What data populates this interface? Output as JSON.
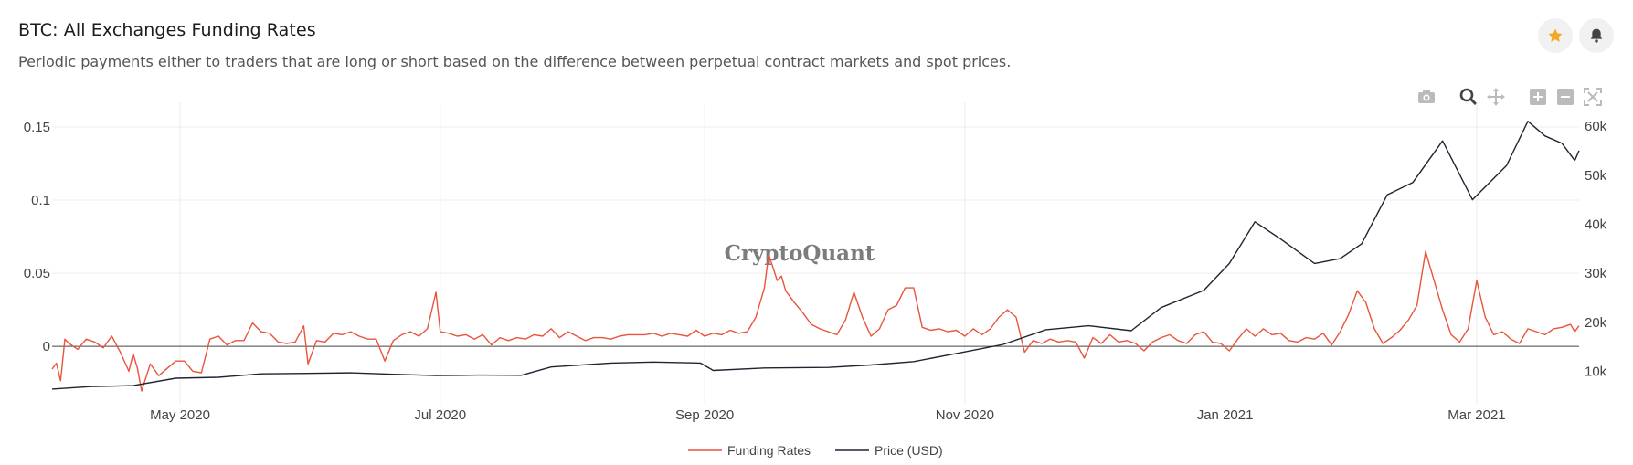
{
  "header": {
    "title": "BTC: All Exchanges Funding Rates",
    "subtitle": "Periodic payments either to traders that are long or short based on the difference between perpetual contract markets and spot prices."
  },
  "buttons": {
    "favorite_icon": "star-icon",
    "notify_icon": "bell-icon"
  },
  "modebar": [
    "camera-icon",
    "zoom-icon",
    "pan-icon",
    "zoom-in-icon",
    "zoom-out-icon",
    "autoscale-icon"
  ],
  "colors": {
    "funding": "#e8543c",
    "price": "#1d2531",
    "star": "#f5a623",
    "grid": "#ececec"
  },
  "watermark": "CryptoQuant",
  "chart_data": {
    "type": "line",
    "x_ticks": [
      "May 2020",
      "Jul 2020",
      "Sep 2020",
      "Nov 2020",
      "Jan 2021",
      "Mar 2021"
    ],
    "y_left_ticks": [
      "0.15",
      "0.1",
      "0.05",
      "0"
    ],
    "y_right_ticks": [
      "60k",
      "50k",
      "40k",
      "30k",
      "20k",
      "10k"
    ],
    "ylim_left": [
      -0.0305,
      0.1606
    ],
    "ylim_right": [
      6000,
      63000
    ],
    "xlim": [
      "2020-04-01",
      "2021-03-25"
    ],
    "legend_position": "bottom-center",
    "series": [
      {
        "name": "Funding Rates",
        "axis": "left",
        "points": [
          [
            "2020-04-01",
            -0.0155
          ],
          [
            "2020-04-02",
            -0.0115
          ],
          [
            "2020-04-03",
            -0.0235
          ],
          [
            "2020-04-04",
            0.005
          ],
          [
            "2020-04-05",
            0.002
          ],
          [
            "2020-04-07",
            -0.002
          ],
          [
            "2020-04-09",
            0.005
          ],
          [
            "2020-04-11",
            0.003
          ],
          [
            "2020-04-13",
            -0.001
          ],
          [
            "2020-04-15",
            0.007
          ],
          [
            "2020-04-17",
            -0.004
          ],
          [
            "2020-04-19",
            -0.017
          ],
          [
            "2020-04-20",
            -0.005
          ],
          [
            "2020-04-21",
            -0.015
          ],
          [
            "2020-04-22",
            -0.0305
          ],
          [
            "2020-04-24",
            -0.012
          ],
          [
            "2020-04-26",
            -0.02
          ],
          [
            "2020-04-28",
            -0.015
          ],
          [
            "2020-04-30",
            -0.01
          ],
          [
            "2020-05-02",
            -0.01
          ],
          [
            "2020-05-04",
            -0.017
          ],
          [
            "2020-05-06",
            -0.018
          ],
          [
            "2020-05-08",
            0.005
          ],
          [
            "2020-05-10",
            0.007
          ],
          [
            "2020-05-12",
            0.001
          ],
          [
            "2020-05-14",
            0.004
          ],
          [
            "2020-05-16",
            0.004
          ],
          [
            "2020-05-18",
            0.016
          ],
          [
            "2020-05-20",
            0.01
          ],
          [
            "2020-05-22",
            0.009
          ],
          [
            "2020-05-24",
            0.003
          ],
          [
            "2020-05-26",
            0.002
          ],
          [
            "2020-05-28",
            0.003
          ],
          [
            "2020-05-30",
            0.014
          ],
          [
            "2020-05-31",
            -0.012
          ],
          [
            "2020-06-02",
            0.004
          ],
          [
            "2020-06-04",
            0.003
          ],
          [
            "2020-06-06",
            0.009
          ],
          [
            "2020-06-08",
            0.008
          ],
          [
            "2020-06-10",
            0.01
          ],
          [
            "2020-06-12",
            0.007
          ],
          [
            "2020-06-14",
            0.005
          ],
          [
            "2020-06-16",
            0.005
          ],
          [
            "2020-06-18",
            -0.01
          ],
          [
            "2020-06-20",
            0.004
          ],
          [
            "2020-06-22",
            0.008
          ],
          [
            "2020-06-24",
            0.01
          ],
          [
            "2020-06-26",
            0.007
          ],
          [
            "2020-06-28",
            0.012
          ],
          [
            "2020-06-30",
            0.037
          ],
          [
            "2020-07-01",
            0.01
          ],
          [
            "2020-07-03",
            0.009
          ],
          [
            "2020-07-05",
            0.007
          ],
          [
            "2020-07-07",
            0.008
          ],
          [
            "2020-07-09",
            0.005
          ],
          [
            "2020-07-11",
            0.008
          ],
          [
            "2020-07-13",
            0.001
          ],
          [
            "2020-07-15",
            0.006
          ],
          [
            "2020-07-17",
            0.004
          ],
          [
            "2020-07-19",
            0.006
          ],
          [
            "2020-07-21",
            0.005
          ],
          [
            "2020-07-23",
            0.008
          ],
          [
            "2020-07-25",
            0.007
          ],
          [
            "2020-07-27",
            0.012
          ],
          [
            "2020-07-29",
            0.006
          ],
          [
            "2020-07-31",
            0.01
          ],
          [
            "2020-08-02",
            0.007
          ],
          [
            "2020-08-04",
            0.004
          ],
          [
            "2020-08-06",
            0.006
          ],
          [
            "2020-08-08",
            0.006
          ],
          [
            "2020-08-10",
            0.005
          ],
          [
            "2020-08-12",
            0.007
          ],
          [
            "2020-08-14",
            0.008
          ],
          [
            "2020-08-16",
            0.008
          ],
          [
            "2020-08-18",
            0.008
          ],
          [
            "2020-08-20",
            0.009
          ],
          [
            "2020-08-22",
            0.007
          ],
          [
            "2020-08-24",
            0.009
          ],
          [
            "2020-08-26",
            0.008
          ],
          [
            "2020-08-28",
            0.007
          ],
          [
            "2020-08-30",
            0.011
          ],
          [
            "2020-09-01",
            0.007
          ],
          [
            "2020-09-03",
            0.009
          ],
          [
            "2020-09-05",
            0.008
          ],
          [
            "2020-09-07",
            0.011
          ],
          [
            "2020-09-09",
            0.009
          ],
          [
            "2020-09-11",
            0.01
          ],
          [
            "2020-09-13",
            0.02
          ],
          [
            "2020-09-15",
            0.04
          ],
          [
            "2020-09-16",
            0.063
          ],
          [
            "2020-09-18",
            0.045
          ],
          [
            "2020-09-19",
            0.048
          ],
          [
            "2020-09-20",
            0.038
          ],
          [
            "2020-09-22",
            0.03
          ],
          [
            "2020-09-24",
            0.023
          ],
          [
            "2020-09-26",
            0.015
          ],
          [
            "2020-09-28",
            0.012
          ],
          [
            "2020-09-30",
            0.01
          ],
          [
            "2020-10-02",
            0.008
          ],
          [
            "2020-10-04",
            0.018
          ],
          [
            "2020-10-06",
            0.037
          ],
          [
            "2020-10-08",
            0.02
          ],
          [
            "2020-10-10",
            0.007
          ],
          [
            "2020-10-12",
            0.012
          ],
          [
            "2020-10-14",
            0.025
          ],
          [
            "2020-10-16",
            0.028
          ],
          [
            "2020-10-18",
            0.04
          ],
          [
            "2020-10-20",
            0.04
          ],
          [
            "2020-10-22",
            0.013
          ],
          [
            "2020-10-24",
            0.011
          ],
          [
            "2020-10-26",
            0.012
          ],
          [
            "2020-10-28",
            0.01
          ],
          [
            "2020-10-30",
            0.011
          ],
          [
            "2020-11-01",
            0.007
          ],
          [
            "2020-11-03",
            0.012
          ],
          [
            "2020-11-05",
            0.008
          ],
          [
            "2020-11-07",
            0.012
          ],
          [
            "2020-11-09",
            0.02
          ],
          [
            "2020-11-11",
            0.025
          ],
          [
            "2020-11-13",
            0.02
          ],
          [
            "2020-11-15",
            -0.004
          ],
          [
            "2020-11-17",
            0.004
          ],
          [
            "2020-11-19",
            0.002
          ],
          [
            "2020-11-21",
            0.005
          ],
          [
            "2020-11-23",
            0.003
          ],
          [
            "2020-11-25",
            0.004
          ],
          [
            "2020-11-27",
            0.003
          ],
          [
            "2020-11-29",
            -0.008
          ],
          [
            "2020-12-01",
            0.006
          ],
          [
            "2020-12-03",
            0.002
          ],
          [
            "2020-12-05",
            0.008
          ],
          [
            "2020-12-07",
            0.003
          ],
          [
            "2020-12-09",
            0.004
          ],
          [
            "2020-12-11",
            0.002
          ],
          [
            "2020-12-13",
            -0.003
          ],
          [
            "2020-12-15",
            0.003
          ],
          [
            "2020-12-17",
            0.006
          ],
          [
            "2020-12-19",
            0.008
          ],
          [
            "2020-12-21",
            0.004
          ],
          [
            "2020-12-23",
            0.002
          ],
          [
            "2020-12-25",
            0.008
          ],
          [
            "2020-12-27",
            0.01
          ],
          [
            "2020-12-29",
            0.003
          ],
          [
            "2020-12-31",
            0.002
          ],
          [
            "2021-01-02",
            -0.003
          ],
          [
            "2021-01-04",
            0.005
          ],
          [
            "2021-01-06",
            0.012
          ],
          [
            "2021-01-08",
            0.007
          ],
          [
            "2021-01-10",
            0.012
          ],
          [
            "2021-01-12",
            0.008
          ],
          [
            "2021-01-14",
            0.009
          ],
          [
            "2021-01-16",
            0.004
          ],
          [
            "2021-01-18",
            0.003
          ],
          [
            "2021-01-20",
            0.006
          ],
          [
            "2021-01-22",
            0.005
          ],
          [
            "2021-01-24",
            0.009
          ],
          [
            "2021-01-26",
            0.001
          ],
          [
            "2021-01-28",
            0.01
          ],
          [
            "2021-01-30",
            0.022
          ],
          [
            "2021-02-01",
            0.038
          ],
          [
            "2021-02-03",
            0.03
          ],
          [
            "2021-02-05",
            0.012
          ],
          [
            "2021-02-07",
            0.002
          ],
          [
            "2021-02-09",
            0.006
          ],
          [
            "2021-02-11",
            0.011
          ],
          [
            "2021-02-13",
            0.018
          ],
          [
            "2021-02-15",
            0.028
          ],
          [
            "2021-02-17",
            0.065
          ],
          [
            "2021-02-19",
            0.045
          ],
          [
            "2021-02-21",
            0.025
          ],
          [
            "2021-02-23",
            0.008
          ],
          [
            "2021-02-25",
            0.003
          ],
          [
            "2021-02-27",
            0.012
          ],
          [
            "2021-03-01",
            0.045
          ],
          [
            "2021-03-03",
            0.02
          ],
          [
            "2021-03-05",
            0.008
          ],
          [
            "2021-03-07",
            0.01
          ],
          [
            "2021-03-09",
            0.005
          ],
          [
            "2021-03-11",
            0.002
          ],
          [
            "2021-03-13",
            0.012
          ],
          [
            "2021-03-15",
            0.01
          ],
          [
            "2021-03-17",
            0.008
          ],
          [
            "2021-03-19",
            0.012
          ],
          [
            "2021-03-21",
            0.013
          ],
          [
            "2021-03-23",
            0.015
          ],
          [
            "2021-03-24",
            0.01
          ],
          [
            "2021-03-25",
            0.014
          ]
        ]
      },
      {
        "name": "Price (USD)",
        "axis": "right",
        "points": [
          [
            "2020-04-01",
            6400
          ],
          [
            "2020-04-10",
            6900
          ],
          [
            "2020-04-20",
            7100
          ],
          [
            "2020-04-30",
            8600
          ],
          [
            "2020-05-10",
            8800
          ],
          [
            "2020-05-20",
            9500
          ],
          [
            "2020-05-31",
            9600
          ],
          [
            "2020-06-10",
            9700
          ],
          [
            "2020-06-20",
            9400
          ],
          [
            "2020-06-30",
            9150
          ],
          [
            "2020-07-10",
            9250
          ],
          [
            "2020-07-20",
            9200
          ],
          [
            "2020-07-27",
            10900
          ],
          [
            "2020-08-10",
            11700
          ],
          [
            "2020-08-20",
            11900
          ],
          [
            "2020-08-31",
            11700
          ],
          [
            "2020-09-03",
            10200
          ],
          [
            "2020-09-15",
            10700
          ],
          [
            "2020-09-30",
            10800
          ],
          [
            "2020-10-10",
            11300
          ],
          [
            "2020-10-20",
            12000
          ],
          [
            "2020-10-31",
            13800
          ],
          [
            "2020-11-10",
            15500
          ],
          [
            "2020-11-20",
            18500
          ],
          [
            "2020-11-30",
            19300
          ],
          [
            "2020-12-10",
            18300
          ],
          [
            "2020-12-17",
            23000
          ],
          [
            "2020-12-27",
            26500
          ],
          [
            "2021-01-02",
            32000
          ],
          [
            "2021-01-08",
            40500
          ],
          [
            "2021-01-14",
            37000
          ],
          [
            "2021-01-22",
            32000
          ],
          [
            "2021-01-28",
            33000
          ],
          [
            "2021-02-02",
            36000
          ],
          [
            "2021-02-08",
            46000
          ],
          [
            "2021-02-14",
            48500
          ],
          [
            "2021-02-21",
            57000
          ],
          [
            "2021-02-28",
            45000
          ],
          [
            "2021-03-08",
            52000
          ],
          [
            "2021-03-13",
            61000
          ],
          [
            "2021-03-17",
            58000
          ],
          [
            "2021-03-21",
            56500
          ],
          [
            "2021-03-24",
            53000
          ],
          [
            "2021-03-25",
            55000
          ]
        ]
      }
    ]
  },
  "legend": {
    "funding_label": "Funding Rates",
    "price_label": "Price (USD)"
  }
}
